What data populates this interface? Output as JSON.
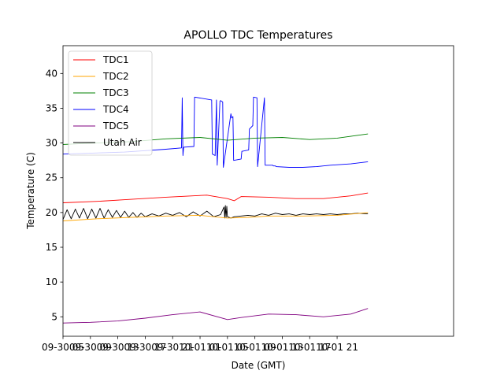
{
  "chart_data": {
    "type": "line",
    "title": "APOLLO TDC Temperatures",
    "xlabel": "Date (GMT)",
    "ylabel": "Temperature (C)",
    "xlim": [
      0,
      57
    ],
    "ylim": [
      2.2,
      44.0
    ],
    "y_ticks": [
      5,
      10,
      15,
      20,
      25,
      30,
      35,
      40
    ],
    "x_ticks": [
      {
        "h": 0,
        "label": "09-30 05"
      },
      {
        "h": 4,
        "label": "09-30 09"
      },
      {
        "h": 8,
        "label": "09-30 13"
      },
      {
        "h": 12,
        "label": "09-30 17"
      },
      {
        "h": 16,
        "label": "09-30 21"
      },
      {
        "h": 20,
        "label": "10-01 01"
      },
      {
        "h": 24,
        "label": "10-01 05"
      },
      {
        "h": 28,
        "label": "10-01 09"
      },
      {
        "h": 32,
        "label": "10-01 13"
      },
      {
        "h": 36,
        "label": "10-01 17"
      },
      {
        "h": 40,
        "label": "10-01 21"
      }
    ],
    "legend_position": "top-left",
    "grid": false,
    "series": [
      {
        "name": "TDC1",
        "color": "#ff0000",
        "x": [
          0,
          5,
          10,
          15,
          21,
          24,
          25,
          26,
          30,
          34,
          38,
          42,
          44.5
        ],
        "y": [
          21.4,
          21.6,
          21.9,
          22.2,
          22.5,
          22.0,
          21.7,
          22.3,
          22.2,
          22.0,
          22.0,
          22.4,
          22.8
        ]
      },
      {
        "name": "TDC2",
        "color": "#ffa500",
        "x": [
          0,
          5,
          10,
          15,
          20,
          24,
          27,
          30,
          35,
          40,
          44.5
        ],
        "y": [
          18.8,
          19.1,
          19.3,
          19.5,
          19.6,
          19.2,
          19.3,
          19.5,
          19.5,
          19.6,
          20.0
        ]
      },
      {
        "name": "TDC3",
        "color": "#008000",
        "x": [
          0,
          5,
          10,
          15,
          20,
          24,
          28,
          32,
          36,
          40,
          44.5
        ],
        "y": [
          29.8,
          30.0,
          30.2,
          30.6,
          30.8,
          30.4,
          30.7,
          30.8,
          30.5,
          30.7,
          31.3
        ]
      },
      {
        "name": "TDC4",
        "color": "#0000ff",
        "x": [
          0,
          3,
          6,
          9,
          12,
          15,
          17.3,
          17.4,
          17.5,
          17.6,
          19.1,
          19.2,
          21.7,
          21.8,
          22.2,
          22.4,
          22.5,
          22.9,
          23.0,
          23.3,
          23.4,
          24.5,
          24.6,
          24.8,
          24.9,
          26.0,
          26.1,
          27.1,
          27.2,
          27.7,
          27.8,
          28.3,
          28.4,
          29.4,
          29.5,
          30.6,
          30.7,
          31.0,
          31.1,
          33.0,
          35.0,
          37.0,
          39.0,
          42.0,
          44.5
        ],
        "y": [
          28.4,
          28.5,
          28.6,
          28.7,
          28.9,
          29.1,
          29.3,
          36.5,
          28.2,
          29.4,
          29.5,
          36.6,
          36.2,
          28.4,
          28.2,
          36.2,
          26.8,
          36.0,
          36.1,
          35.9,
          26.5,
          34.2,
          33.6,
          33.8,
          27.5,
          27.7,
          28.8,
          29.0,
          32.0,
          32.5,
          36.6,
          36.5,
          26.6,
          36.5,
          26.8,
          26.8,
          26.7,
          26.7,
          26.6,
          26.5,
          26.5,
          26.6,
          26.8,
          27.0,
          27.3
        ]
      },
      {
        "name": "TDC5",
        "color": "#800080",
        "x": [
          0,
          4,
          8,
          12,
          16,
          20,
          24,
          26,
          30,
          34,
          38,
          42,
          44.5
        ],
        "y": [
          4.1,
          4.2,
          4.4,
          4.8,
          5.3,
          5.7,
          4.6,
          4.9,
          5.4,
          5.3,
          5.0,
          5.4,
          6.2
        ]
      },
      {
        "name": "Utah Air",
        "color": "#000000",
        "x": [
          0,
          0.6,
          1.2,
          1.8,
          2.4,
          3.0,
          3.6,
          4.2,
          4.8,
          5.4,
          6.0,
          6.6,
          7.2,
          7.8,
          8.4,
          9.0,
          9.6,
          10.2,
          10.8,
          11.4,
          12.0,
          13.0,
          14.0,
          15.0,
          16.0,
          17.0,
          18.0,
          19.0,
          20.0,
          21.0,
          22.0,
          23.0,
          23.5,
          23.6,
          23.7,
          23.8,
          23.9,
          24.0,
          24.5,
          25.0,
          26.0,
          27.0,
          28.0,
          29.0,
          30.0,
          31.0,
          32.0,
          33.0,
          34.0,
          35.0,
          36.0,
          37.0,
          38.0,
          39.0,
          40.0,
          41.0,
          42.0,
          43.0,
          44.5
        ],
        "y": [
          19.0,
          20.4,
          19.1,
          20.5,
          19.2,
          20.6,
          19.1,
          20.5,
          19.2,
          20.6,
          19.2,
          20.4,
          19.3,
          20.3,
          19.3,
          20.2,
          19.3,
          20.0,
          19.3,
          19.9,
          19.4,
          19.8,
          19.5,
          19.9,
          19.6,
          20.0,
          19.4,
          20.1,
          19.5,
          20.2,
          19.4,
          19.7,
          20.8,
          19.2,
          21.0,
          19.3,
          20.9,
          19.4,
          19.2,
          19.4,
          19.5,
          19.6,
          19.5,
          19.8,
          19.6,
          19.9,
          19.7,
          19.8,
          19.6,
          19.8,
          19.7,
          19.8,
          19.7,
          19.8,
          19.7,
          19.8,
          19.8,
          19.9,
          19.8
        ]
      }
    ]
  }
}
